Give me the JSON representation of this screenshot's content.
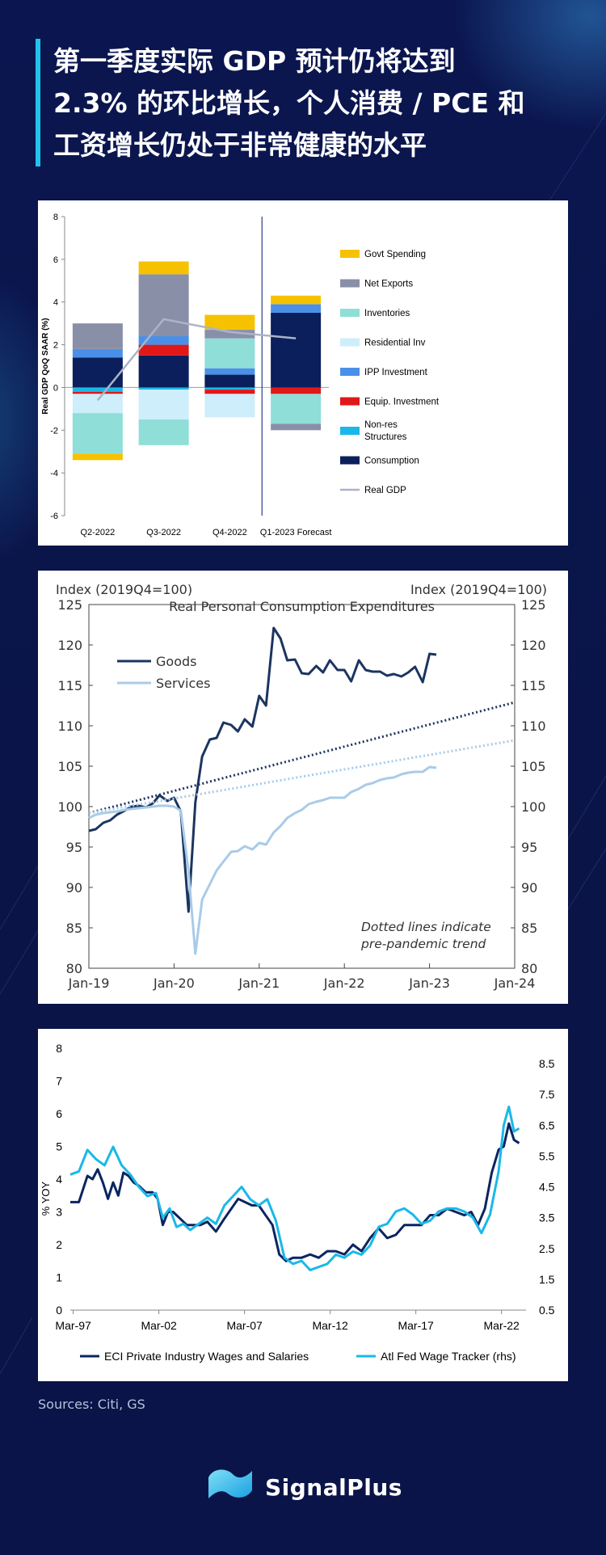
{
  "title": {
    "lines": [
      "第一季度实际 GDP 预计仍将达到",
      "2.3% 的环比增长，个人消费 / PCE 和",
      "工资增长仍处于非常健康的水平"
    ]
  },
  "sources": "Sources: Citi, GS",
  "brand": {
    "name": "SignalPlus"
  },
  "colors": {
    "accent": "#22c3ea",
    "background": "#0a1446"
  },
  "chart_data": [
    {
      "type": "bar",
      "stacked": true,
      "ylabel": "Real GDP QoQ SAAR (%)",
      "ylim": [
        -6,
        8
      ],
      "yticks": [
        -6,
        -4,
        -2,
        0,
        2,
        4,
        6,
        8
      ],
      "categories": [
        "Q2-2022",
        "Q3-2022",
        "Q4-2022",
        "Q1-2023 Forecast"
      ],
      "series": [
        {
          "name": "Consumption",
          "color": "#0b1f5c",
          "values": [
            1.4,
            1.5,
            0.6,
            3.5
          ]
        },
        {
          "name": "Non-res Structures",
          "color": "#1ab8e8",
          "values": [
            -0.2,
            -0.1,
            -0.1,
            0.0
          ]
        },
        {
          "name": "Equip. Investment",
          "color": "#e01818",
          "values": [
            -0.1,
            0.5,
            -0.2,
            -0.3
          ]
        },
        {
          "name": "IPP Investment",
          "color": "#4a90e8",
          "values": [
            0.4,
            0.4,
            0.3,
            0.4
          ]
        },
        {
          "name": "Residential Inv",
          "color": "#cdeefa",
          "values": [
            -0.9,
            -1.4,
            -1.1,
            0.0
          ]
        },
        {
          "name": "Inventories",
          "color": "#8fded8",
          "values": [
            -1.9,
            -1.2,
            1.4,
            -1.4
          ]
        },
        {
          "name": "Net Exports",
          "color": "#8a8fa8",
          "values": [
            1.2,
            2.9,
            0.4,
            -0.3
          ]
        },
        {
          "name": "Govt Spending",
          "color": "#f6c200",
          "values": [
            -0.3,
            0.6,
            0.7,
            0.4
          ]
        }
      ],
      "line": {
        "name": "Real GDP",
        "color": "#aab4c8",
        "values": [
          -0.6,
          3.2,
          2.6,
          2.3
        ]
      },
      "legend": [
        "Govt Spending",
        "Net Exports",
        "Inventories",
        "Residential Inv",
        "IPP Investment",
        "Equip. Investment",
        "Non-res Structures",
        "Consumption",
        "Real GDP"
      ]
    },
    {
      "type": "line",
      "title": "Real Personal Consumption Expenditures",
      "ylabel_left": "Index (2019Q4=100)",
      "ylabel_right": "Index (2019Q4=100)",
      "ylim": [
        80,
        125
      ],
      "yticks": [
        80,
        85,
        90,
        95,
        100,
        105,
        110,
        115,
        120,
        125
      ],
      "xlim": [
        2019.0,
        2024.0
      ],
      "xticks": [
        {
          "x": 2019.0,
          "label": "Jan-19"
        },
        {
          "x": 2020.0,
          "label": "Jan-20"
        },
        {
          "x": 2021.0,
          "label": "Jan-21"
        },
        {
          "x": 2022.0,
          "label": "Jan-22"
        },
        {
          "x": 2023.0,
          "label": "Jan-23"
        },
        {
          "x": 2024.0,
          "label": "Jan-24"
        }
      ],
      "annotation": [
        "Dotted lines indicate",
        "pre-pandemic  trend"
      ],
      "series": [
        {
          "name": "Goods",
          "color": "#1c3560",
          "x": [
            2019.0,
            2019.08,
            2019.17,
            2019.25,
            2019.33,
            2019.42,
            2019.5,
            2019.58,
            2019.67,
            2019.75,
            2019.83,
            2019.92,
            2020.0,
            2020.08,
            2020.17,
            2020.25,
            2020.33,
            2020.42,
            2020.5,
            2020.58,
            2020.67,
            2020.75,
            2020.83,
            2020.92,
            2021.0,
            2021.08,
            2021.17,
            2021.25,
            2021.33,
            2021.42,
            2021.5,
            2021.58,
            2021.67,
            2021.75,
            2021.83,
            2021.92,
            2022.0,
            2022.08,
            2022.17,
            2022.25,
            2022.33,
            2022.42,
            2022.5,
            2022.58,
            2022.67,
            2022.75,
            2022.83,
            2022.92,
            2023.0,
            2023.08
          ],
          "values": [
            97.0,
            97.2,
            98.0,
            98.3,
            99.0,
            99.5,
            100.0,
            100.1,
            99.9,
            100.4,
            101.4,
            100.7,
            101.1,
            99.4,
            87.0,
            100.5,
            106.2,
            108.3,
            108.5,
            110.4,
            110.1,
            109.3,
            110.8,
            109.9,
            113.7,
            112.5,
            122.1,
            120.8,
            118.1,
            118.2,
            116.5,
            116.4,
            117.4,
            116.6,
            118.1,
            116.9,
            116.9,
            115.5,
            118.1,
            116.9,
            116.7,
            116.7,
            116.2,
            116.4,
            116.1,
            116.6,
            117.3,
            115.4,
            118.9,
            118.8
          ]
        },
        {
          "name": "Services",
          "color": "#a9cbe8",
          "x": [
            2019.0,
            2019.08,
            2019.17,
            2019.25,
            2019.33,
            2019.42,
            2019.5,
            2019.58,
            2019.67,
            2019.75,
            2019.83,
            2019.92,
            2020.0,
            2020.08,
            2020.17,
            2020.25,
            2020.33,
            2020.42,
            2020.5,
            2020.58,
            2020.67,
            2020.75,
            2020.83,
            2020.92,
            2021.0,
            2021.08,
            2021.17,
            2021.25,
            2021.33,
            2021.42,
            2021.5,
            2021.58,
            2021.67,
            2021.75,
            2021.83,
            2021.92,
            2022.0,
            2022.08,
            2022.17,
            2022.25,
            2022.33,
            2022.42,
            2022.5,
            2022.58,
            2022.67,
            2022.75,
            2022.83,
            2022.92,
            2023.0,
            2023.08
          ],
          "values": [
            98.6,
            99.0,
            99.2,
            99.3,
            99.4,
            99.6,
            99.7,
            99.8,
            99.9,
            100.0,
            100.1,
            100.1,
            100.0,
            99.5,
            92.0,
            81.8,
            88.5,
            90.4,
            92.1,
            93.2,
            94.4,
            94.5,
            95.1,
            94.7,
            95.5,
            95.3,
            96.8,
            97.6,
            98.6,
            99.2,
            99.6,
            100.3,
            100.6,
            100.8,
            101.1,
            101.1,
            101.1,
            101.8,
            102.2,
            102.7,
            102.9,
            103.3,
            103.5,
            103.6,
            104.0,
            104.2,
            104.3,
            104.3,
            104.9,
            104.8
          ]
        },
        {
          "name": "Goods trend",
          "color": "#1c3560",
          "dotted": true,
          "x": [
            2019.0,
            2024.0
          ],
          "values": [
            99.2,
            112.9
          ]
        },
        {
          "name": "Services trend",
          "color": "#a9cbe8",
          "dotted": true,
          "x": [
            2019.0,
            2024.0
          ],
          "values": [
            99.2,
            108.2
          ]
        }
      ],
      "legend": [
        "Goods",
        "Services"
      ]
    },
    {
      "type": "line",
      "ylabel": "% YOY",
      "ylim": [
        0,
        8
      ],
      "yticks": [
        0,
        1,
        2,
        3,
        4,
        5,
        6,
        7,
        8
      ],
      "y2lim": [
        0.5,
        9.0
      ],
      "y2ticks": [
        0.5,
        1.5,
        2.5,
        3.5,
        4.5,
        5.5,
        6.5,
        7.5,
        8.5
      ],
      "xlim": [
        1997.0,
        2023.6
      ],
      "xticks": [
        {
          "x": 1997.17,
          "label": "Mar-97"
        },
        {
          "x": 2002.17,
          "label": "Mar-02"
        },
        {
          "x": 2007.17,
          "label": "Mar-07"
        },
        {
          "x": 2012.17,
          "label": "Mar-12"
        },
        {
          "x": 2017.17,
          "label": "Mar-17"
        },
        {
          "x": 2022.17,
          "label": "Mar-22"
        }
      ],
      "series": [
        {
          "name": "ECI Private Industry Wages and Salaries",
          "axis": "left",
          "color": "#0c2560",
          "x": [
            1997.0,
            1997.5,
            1998.0,
            1998.3,
            1998.6,
            1998.9,
            1999.2,
            1999.5,
            1999.8,
            2000.1,
            2000.4,
            2000.7,
            2001.0,
            2001.4,
            2001.8,
            2002.1,
            2002.4,
            2002.7,
            2003.0,
            2003.4,
            2003.8,
            2004.2,
            2004.6,
            2005.0,
            2005.5,
            2006.0,
            2006.4,
            2006.8,
            2007.2,
            2007.6,
            2008.0,
            2008.4,
            2008.8,
            2009.2,
            2009.6,
            2010.0,
            2010.5,
            2011.0,
            2011.5,
            2012.0,
            2012.5,
            2013.0,
            2013.5,
            2014.0,
            2014.5,
            2015.0,
            2015.5,
            2016.0,
            2016.5,
            2017.0,
            2017.5,
            2018.0,
            2018.5,
            2019.0,
            2019.5,
            2020.0,
            2020.4,
            2020.8,
            2021.2,
            2021.6,
            2022.0,
            2022.3,
            2022.6,
            2022.9,
            2023.2
          ],
          "values": [
            3.3,
            3.3,
            4.1,
            4.0,
            4.3,
            3.9,
            3.4,
            3.9,
            3.5,
            4.2,
            4.1,
            3.9,
            3.8,
            3.6,
            3.6,
            3.4,
            2.6,
            3.0,
            3.0,
            2.8,
            2.6,
            2.6,
            2.6,
            2.7,
            2.4,
            2.8,
            3.1,
            3.4,
            3.3,
            3.2,
            3.2,
            2.9,
            2.6,
            1.7,
            1.5,
            1.6,
            1.6,
            1.7,
            1.6,
            1.8,
            1.8,
            1.7,
            2.0,
            1.8,
            2.2,
            2.5,
            2.2,
            2.3,
            2.6,
            2.6,
            2.6,
            2.9,
            2.9,
            3.1,
            3.0,
            2.9,
            3.0,
            2.6,
            3.1,
            4.2,
            4.9,
            5.0,
            5.7,
            5.2,
            5.1
          ]
        },
        {
          "name": "Atl Fed Wage Tracker (rhs)",
          "axis": "right",
          "color": "#1ab8e8",
          "x": [
            1997.0,
            1997.5,
            1998.0,
            1998.5,
            1999.0,
            1999.5,
            2000.0,
            2000.5,
            2001.0,
            2001.5,
            2002.0,
            2002.4,
            2002.8,
            2003.2,
            2003.6,
            2004.0,
            2004.5,
            2005.0,
            2005.5,
            2006.0,
            2006.5,
            2007.0,
            2007.5,
            2008.0,
            2008.5,
            2009.0,
            2009.5,
            2010.0,
            2010.5,
            2011.0,
            2011.5,
            2012.0,
            2012.5,
            2013.0,
            2013.5,
            2014.0,
            2014.5,
            2015.0,
            2015.5,
            2016.0,
            2016.5,
            2017.0,
            2017.5,
            2018.0,
            2018.5,
            2019.0,
            2019.5,
            2020.0,
            2020.5,
            2021.0,
            2021.5,
            2022.0,
            2022.3,
            2022.6,
            2022.9,
            2023.2
          ],
          "values": [
            4.9,
            5.0,
            5.7,
            5.4,
            5.2,
            5.8,
            5.2,
            4.9,
            4.5,
            4.2,
            4.3,
            3.5,
            3.8,
            3.2,
            3.3,
            3.1,
            3.3,
            3.5,
            3.3,
            3.9,
            4.2,
            4.5,
            4.1,
            3.9,
            4.1,
            3.4,
            2.2,
            2.0,
            2.1,
            1.8,
            1.9,
            2.0,
            2.3,
            2.2,
            2.4,
            2.3,
            2.6,
            3.2,
            3.3,
            3.7,
            3.8,
            3.6,
            3.3,
            3.4,
            3.7,
            3.8,
            3.8,
            3.7,
            3.5,
            3.0,
            3.6,
            5.0,
            6.5,
            7.1,
            6.3,
            6.4
          ]
        }
      ],
      "legend": [
        "ECI Private Industry Wages and Salaries",
        "Atl Fed Wage Tracker (rhs)"
      ]
    }
  ]
}
